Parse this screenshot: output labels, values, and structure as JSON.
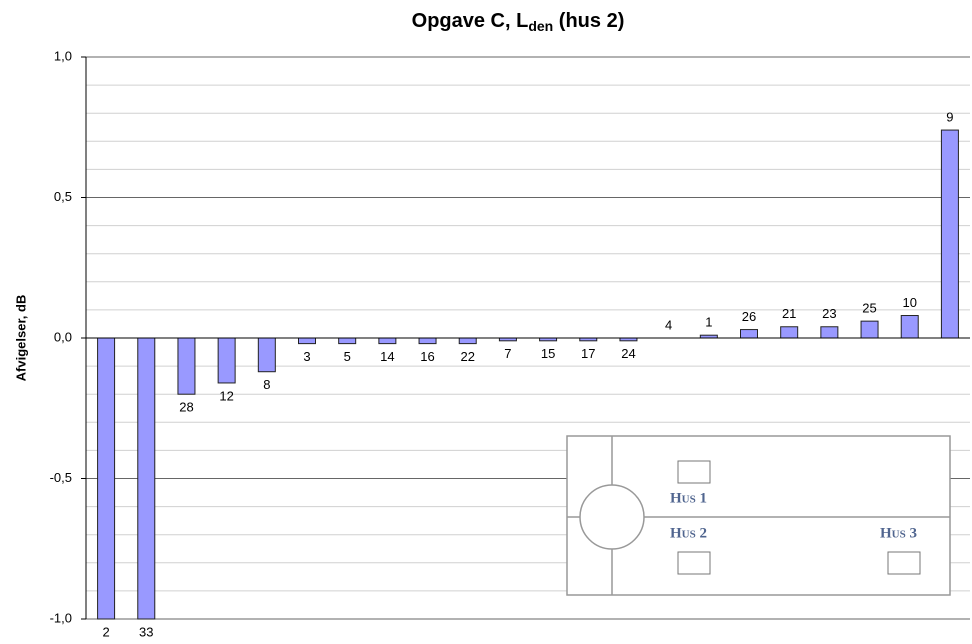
{
  "chart_data": {
    "type": "bar",
    "title": "Opgave C, L",
    "title_subscript": "den",
    "title_suffix": " (hus 2)",
    "y_label": "Afvigelser, dB",
    "categories": [
      "2",
      "33",
      "28",
      "12",
      "8",
      "3",
      "5",
      "14",
      "16",
      "22",
      "7",
      "15",
      "17",
      "24",
      "4",
      "1",
      "26",
      "21",
      "23",
      "25",
      "10",
      "9"
    ],
    "values": [
      -1.0,
      -1.0,
      -0.2,
      -0.16,
      -0.12,
      -0.02,
      -0.02,
      -0.02,
      -0.02,
      -0.02,
      -0.01,
      -0.01,
      -0.01,
      -0.01,
      0,
      0.01,
      0.03,
      0.04,
      0.04,
      0.06,
      0.08,
      0.74
    ],
    "color": "#9999ff",
    "ylim": [
      -1.0,
      1.0
    ],
    "yticks": [
      {
        "value": -1.0,
        "label": "-1,0"
      },
      {
        "value": -0.5,
        "label": "-0,5"
      },
      {
        "value": 0,
        "label": "0,0"
      },
      {
        "value": 0.5,
        "label": "0,5"
      },
      {
        "value": 1.0,
        "label": "1,0"
      }
    ],
    "yminorticks": [
      -0.9,
      -0.8,
      -0.7,
      -0.6,
      -0.4,
      -0.3,
      -0.2,
      -0.1,
      0.1,
      0.2,
      0.3,
      0.4,
      0.6,
      0.7,
      0.8,
      0.9
    ],
    "grid": true
  },
  "inset": {
    "labels": [
      "Hus 1",
      "Hus 2",
      "Hus 3"
    ]
  }
}
